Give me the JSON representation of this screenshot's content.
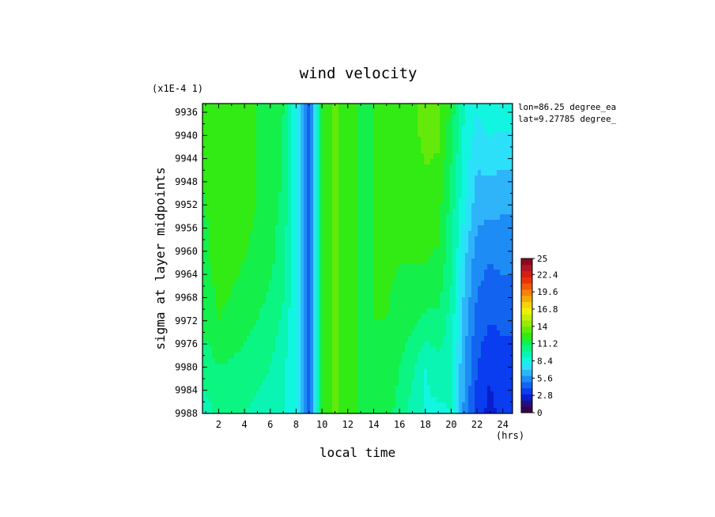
{
  "chart_data": {
    "type": "heatmap",
    "title": "wind velocity",
    "scale_note": "(x1E-4 1)",
    "xlabel": "local time",
    "x_unit": "(hrs)",
    "ylabel": "sigma at layer midpoints",
    "location": [
      "lon=86.25 degree_ea",
      "lat=9.27785 degree_"
    ],
    "xlim": [
      0.75,
      24.75
    ],
    "ylim": [
      9934.5,
      9988
    ],
    "x_ticks": [
      "2",
      "4",
      "6",
      "8",
      "10",
      "12",
      "14",
      "16",
      "18",
      "20",
      "22",
      "24"
    ],
    "y_ticks": [
      "9936",
      "9940",
      "9944",
      "9948",
      "9952",
      "9956",
      "9960",
      "9964",
      "9968",
      "9972",
      "9976",
      "9980",
      "9984",
      "9988"
    ],
    "x": [
      1,
      2,
      3,
      4,
      5,
      6,
      7,
      8,
      9,
      10,
      11,
      12,
      13,
      14,
      15,
      16,
      17,
      18,
      19,
      20,
      21,
      22,
      23,
      24
    ],
    "y": [
      9936,
      9950,
      9962,
      9972,
      9980,
      9988
    ],
    "values": [
      [
        12.0,
        12.4,
        12.8,
        12.6,
        12.0,
        11.6,
        11.0,
        8.0,
        4.0,
        12.0,
        13.2,
        12.6,
        11.8,
        12.0,
        12.2,
        12.4,
        12.8,
        13.4,
        13.4,
        11.6,
        9.0,
        8.0,
        8.6,
        8.4
      ],
      [
        12.0,
        12.6,
        12.8,
        12.6,
        12.0,
        11.6,
        10.8,
        8.0,
        4.0,
        12.0,
        13.2,
        12.6,
        11.8,
        12.0,
        12.2,
        12.2,
        12.6,
        12.8,
        12.6,
        10.6,
        8.4,
        6.6,
        6.6,
        6.4
      ],
      [
        11.8,
        12.4,
        12.2,
        12.0,
        11.6,
        11.2,
        10.4,
        8.0,
        4.0,
        12.0,
        13.2,
        12.6,
        11.8,
        12.0,
        12.2,
        12.0,
        12.0,
        12.0,
        11.8,
        10.2,
        7.2,
        5.4,
        5.0,
        5.2
      ],
      [
        11.4,
        12.0,
        11.8,
        11.4,
        11.0,
        10.6,
        9.8,
        8.0,
        4.0,
        12.0,
        13.2,
        12.6,
        11.8,
        12.0,
        12.0,
        11.6,
        11.2,
        10.8,
        10.8,
        9.6,
        6.6,
        4.6,
        4.0,
        4.2
      ],
      [
        10.4,
        11.0,
        10.8,
        10.6,
        10.2,
        10.0,
        9.2,
        8.0,
        4.0,
        12.0,
        13.2,
        12.6,
        11.8,
        11.8,
        11.8,
        11.0,
        10.2,
        9.0,
        9.6,
        9.2,
        6.0,
        4.0,
        3.2,
        3.6
      ],
      [
        9.6,
        10.2,
        10.2,
        10.0,
        9.8,
        9.6,
        9.0,
        8.0,
        4.0,
        12.0,
        13.2,
        12.6,
        11.8,
        11.6,
        11.4,
        10.6,
        9.6,
        8.8,
        8.8,
        9.0,
        5.8,
        3.6,
        2.6,
        3.4
      ]
    ],
    "colorbar": {
      "min": 0,
      "max": 25,
      "tick_labels": [
        "0",
        "2.8",
        "5.6",
        "8.4",
        "11.2",
        "14",
        "16.8",
        "19.6",
        "22.4",
        "25"
      ],
      "colors": [
        "#3a0050",
        "#24107a",
        "#0a1ecc",
        "#0a3cf0",
        "#1264f0",
        "#1e8cf5",
        "#2fb4fa",
        "#2de0fa",
        "#12f5e0",
        "#0af5b4",
        "#0af582",
        "#14ef4a",
        "#32ea14",
        "#64ea0a",
        "#96ec0a",
        "#c4ee0a",
        "#eef00a",
        "#f5d20a",
        "#f5aa0a",
        "#f5820a",
        "#f05a0a",
        "#e8320a",
        "#d41e14",
        "#b41428",
        "#8c0a1e"
      ]
    }
  }
}
